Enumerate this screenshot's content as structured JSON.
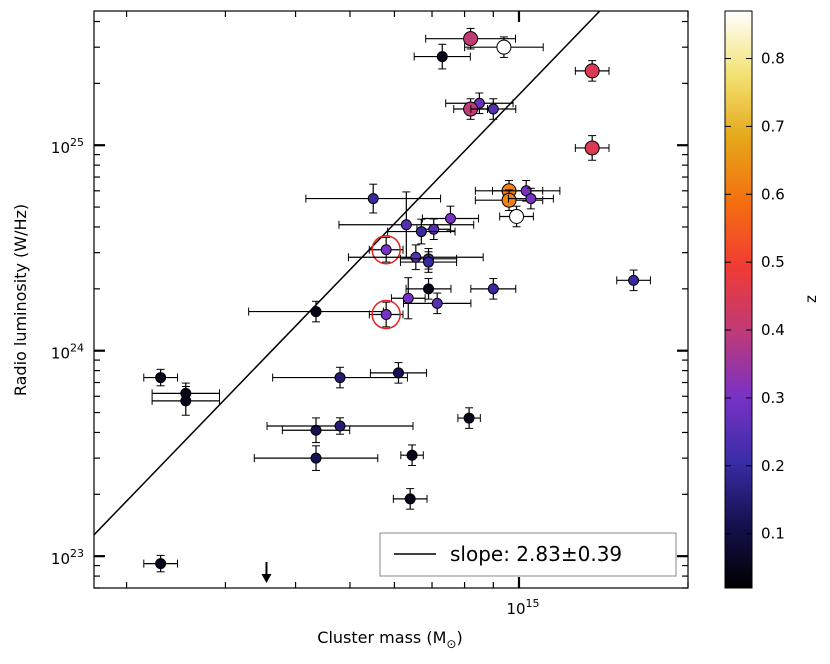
{
  "chart_data": {
    "type": "scatter",
    "title": "",
    "xlabel": "Cluster mass (M",
    "xlabel_sub": "⊙",
    "xlabel_close": ")",
    "ylabel": "Radio luminosity (W/Hz)",
    "xscale": "log",
    "yscale": "log",
    "xlim": [
      175000000000000.0,
      2000000000000000.0
    ],
    "ylim": [
      7e+22,
      4.5e+25
    ],
    "x_tick_label": "10",
    "x_tick_exp": "15",
    "y_tick_labels": [
      {
        "value": 1e+23,
        "base": "10",
        "exp": "23"
      },
      {
        "value": 1e+24,
        "base": "10",
        "exp": "24"
      },
      {
        "value": 1e+25,
        "base": "10",
        "exp": "25"
      }
    ],
    "colorbar": {
      "label": "z",
      "range": [
        0.02,
        0.87
      ],
      "ticks": [
        "0.1",
        "0.2",
        "0.3",
        "0.4",
        "0.5",
        "0.6",
        "0.7",
        "0.8"
      ],
      "colors": [
        "#000000",
        "#141150",
        "#3b2da8",
        "#7932c4",
        "#bf3a78",
        "#f03b35",
        "#f46e10",
        "#e5a619",
        "#f3e272",
        "#ffffff"
      ]
    },
    "fit_line": {
      "slope_label": "slope: 2.83",
      "slope_err": "0.39",
      "pm": "±"
    },
    "upper_limit_arrow": {
      "x": 355000000000000.0
    },
    "points": [
      {
        "x": 730000000000000.0,
        "y": 2.7e+25,
        "z": 0.05,
        "xerr": 0.05,
        "yerr": 0.06
      },
      {
        "x": 820000000000000.0,
        "y": 3.3e+25,
        "z": 0.4,
        "xerr": 0.08,
        "yerr": 0.05,
        "big": true
      },
      {
        "x": 940000000000000.0,
        "y": 3e+25,
        "z": 0.87,
        "xerr": 0.07,
        "yerr": 0.05,
        "big": true
      },
      {
        "x": 1350000000000000.0,
        "y": 2.3e+25,
        "z": 0.45,
        "xerr": 0.03,
        "yerr": 0.05,
        "big": true
      },
      {
        "x": 850000000000000.0,
        "y": 1.6e+25,
        "z": 0.28,
        "xerr": 0.06,
        "yerr": 0.05
      },
      {
        "x": 820000000000000.0,
        "y": 1.5e+25,
        "z": 0.4,
        "xerr": 0.03,
        "yerr": 0.05,
        "big": true
      },
      {
        "x": 900000000000000.0,
        "y": 1.5e+25,
        "z": 0.25,
        "xerr": 0.04,
        "yerr": 0.05
      },
      {
        "x": 1350000000000000.0,
        "y": 9.7e+24,
        "z": 0.45,
        "xerr": 0.03,
        "yerr": 0.06,
        "big": true
      },
      {
        "x": 550000000000000.0,
        "y": 5.5e+24,
        "z": 0.2,
        "xerr": 0.12,
        "yerr": 0.07
      },
      {
        "x": 960000000000000.0,
        "y": 6e+24,
        "z": 0.62,
        "xerr": 0.06,
        "yerr": 0.05,
        "big": true
      },
      {
        "x": 960000000000000.0,
        "y": 5.4e+24,
        "z": 0.62,
        "xerr": 0.06,
        "yerr": 0.05,
        "big": true
      },
      {
        "x": 1030000000000000.0,
        "y": 6e+24,
        "z": 0.3,
        "xerr": 0.06,
        "yerr": 0.05
      },
      {
        "x": 1050000000000000.0,
        "y": 5.5e+24,
        "z": 0.3,
        "xerr": 0.04,
        "yerr": 0.05
      },
      {
        "x": 990000000000000.0,
        "y": 4.5e+24,
        "z": 0.87,
        "xerr": 0.03,
        "yerr": 0.05,
        "big": true
      },
      {
        "x": 630000000000000.0,
        "y": 4.1e+24,
        "z": 0.25,
        "xerr": 0.12,
        "yerr": 0.16
      },
      {
        "x": 755000000000000.0,
        "y": 4.4e+24,
        "z": 0.3,
        "xerr": 0.05,
        "yerr": 0.06
      },
      {
        "x": 705000000000000.0,
        "y": 3.9e+24,
        "z": 0.25,
        "xerr": 0.03,
        "yerr": 0.05
      },
      {
        "x": 670000000000000.0,
        "y": 3.8e+24,
        "z": 0.2,
        "xerr": 0.06,
        "yerr": 0.06
      },
      {
        "x": 580000000000000.0,
        "y": 3.1e+24,
        "z": 0.3,
        "xerr": 0.03,
        "yerr": 0.06,
        "circled": true
      },
      {
        "x": 655000000000000.0,
        "y": 2.85e+24,
        "z": 0.25,
        "xerr": 0.12,
        "yerr": 0.06
      },
      {
        "x": 690000000000000.0,
        "y": 2.8e+24,
        "z": 0.22,
        "xerr": 0.05,
        "yerr": 0.05
      },
      {
        "x": 690000000000000.0,
        "y": 2.7e+24,
        "z": 0.2,
        "xerr": 0.05,
        "yerr": 0.05
      },
      {
        "x": 690000000000000.0,
        "y": 2e+24,
        "z": 0.05,
        "xerr": 0.04,
        "yerr": 0.05
      },
      {
        "x": 900000000000000.0,
        "y": 2e+24,
        "z": 0.2,
        "xerr": 0.04,
        "yerr": 0.05
      },
      {
        "x": 635000000000000.0,
        "y": 1.8e+24,
        "z": 0.3,
        "xerr": 0.03,
        "yerr": 0.1
      },
      {
        "x": 715000000000000.0,
        "y": 1.7e+24,
        "z": 0.25,
        "xerr": 0.06,
        "yerr": 0.05
      },
      {
        "x": 1600000000000000.0,
        "y": 2.2e+24,
        "z": 0.2,
        "xerr": 0.03,
        "yerr": 0.05
      },
      {
        "x": 435000000000000.0,
        "y": 1.55e+24,
        "z": 0.05,
        "xerr": 0.12,
        "yerr": 0.05
      },
      {
        "x": 580000000000000.0,
        "y": 1.5e+24,
        "z": 0.3,
        "xerr": 0.03,
        "yerr": 0.06,
        "circled": true
      },
      {
        "x": 230000000000000.0,
        "y": 7.4e+23,
        "z": 0.05,
        "xerr": 0.03,
        "yerr": 0.04
      },
      {
        "x": 255000000000000.0,
        "y": 6.2e+23,
        "z": 0.05,
        "xerr": 0.06,
        "yerr": 0.05
      },
      {
        "x": 255000000000000.0,
        "y": 5.7e+23,
        "z": 0.05,
        "xerr": 0.06,
        "yerr": 0.07
      },
      {
        "x": 480000000000000.0,
        "y": 7.4e+23,
        "z": 0.15,
        "xerr": 0.12,
        "yerr": 0.05
      },
      {
        "x": 610000000000000.0,
        "y": 7.8e+23,
        "z": 0.12,
        "xerr": 0.05,
        "yerr": 0.05
      },
      {
        "x": 815000000000000.0,
        "y": 4.7e+23,
        "z": 0.05,
        "xerr": 0.02,
        "yerr": 0.05
      },
      {
        "x": 435000000000000.0,
        "y": 4.1e+23,
        "z": 0.12,
        "xerr": 0.06,
        "yerr": 0.06
      },
      {
        "x": 480000000000000.0,
        "y": 4.3e+23,
        "z": 0.15,
        "xerr": 0.13,
        "yerr": 0.04
      },
      {
        "x": 435000000000000.0,
        "y": 3e+23,
        "z": 0.12,
        "xerr": 0.11,
        "yerr": 0.06
      },
      {
        "x": 645000000000000.0,
        "y": 3.1e+23,
        "z": 0.05,
        "xerr": 0.02,
        "yerr": 0.05
      },
      {
        "x": 640000000000000.0,
        "y": 1.9e+23,
        "z": 0.05,
        "xerr": 0.03,
        "yerr": 0.05
      },
      {
        "x": 230000000000000.0,
        "y": 9.2e+22,
        "z": 0.05,
        "xerr": 0.03,
        "yerr": 0.04
      }
    ]
  }
}
